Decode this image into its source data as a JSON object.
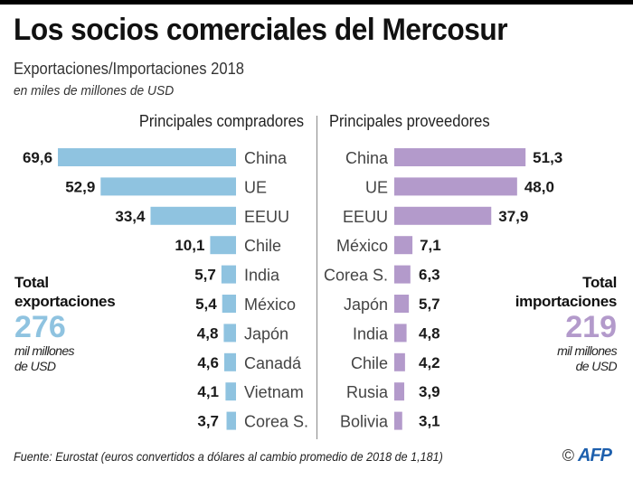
{
  "header": {
    "title": "Los socios comerciales del Mercosur",
    "subtitle": "Exportaciones/Importaciones 2018",
    "unit": "en miles de millones de USD"
  },
  "chart_data": [
    {
      "type": "bar",
      "orientation": "horizontal",
      "direction": "leftward",
      "title": "Principales compradores",
      "categories": [
        "China",
        "UE",
        "EEUU",
        "Chile",
        "India",
        "México",
        "Japón",
        "Canadá",
        "Vietnam",
        "Corea S."
      ],
      "values": [
        69.6,
        52.9,
        33.4,
        10.1,
        5.7,
        5.4,
        4.8,
        4.6,
        4.1,
        3.7
      ],
      "value_labels": [
        "69,6",
        "52,9",
        "33,4",
        "10,1",
        "5,7",
        "5,4",
        "4,8",
        "4,6",
        "4,1",
        "3,7"
      ],
      "color": "#8fc3e0",
      "xlabel": "",
      "ylabel": "",
      "grid": false,
      "total": {
        "label_line1": "Total",
        "label_line2": "exportaciones",
        "value": "276",
        "unit_line1": "mil millones",
        "unit_line2": "de USD",
        "color": "#8fc3e0"
      }
    },
    {
      "type": "bar",
      "orientation": "horizontal",
      "direction": "rightward",
      "title": "Principales proveedores",
      "categories": [
        "China",
        "UE",
        "EEUU",
        "México",
        "Corea S.",
        "Japón",
        "India",
        "Chile",
        "Rusia",
        "Bolivia"
      ],
      "values": [
        51.3,
        48.0,
        37.9,
        7.1,
        6.3,
        5.7,
        4.8,
        4.2,
        3.9,
        3.1
      ],
      "value_labels": [
        "51,3",
        "48,0",
        "37,9",
        "7,1",
        "6,3",
        "5,7",
        "4,8",
        "4,2",
        "3,9",
        "3,1"
      ],
      "color": "#b39acb",
      "xlabel": "",
      "ylabel": "",
      "grid": false,
      "total": {
        "label_line1": "Total",
        "label_line2": "importaciones",
        "value": "219",
        "unit_line1": "mil millones",
        "unit_line2": "de USD",
        "color": "#b39acb"
      }
    }
  ],
  "footer": {
    "source": "Fuente: Eurostat (euros convertidos a dólares al cambio promedio de 2018 de 1,181)",
    "copyright_symbol": "©",
    "brand": "AFP"
  }
}
